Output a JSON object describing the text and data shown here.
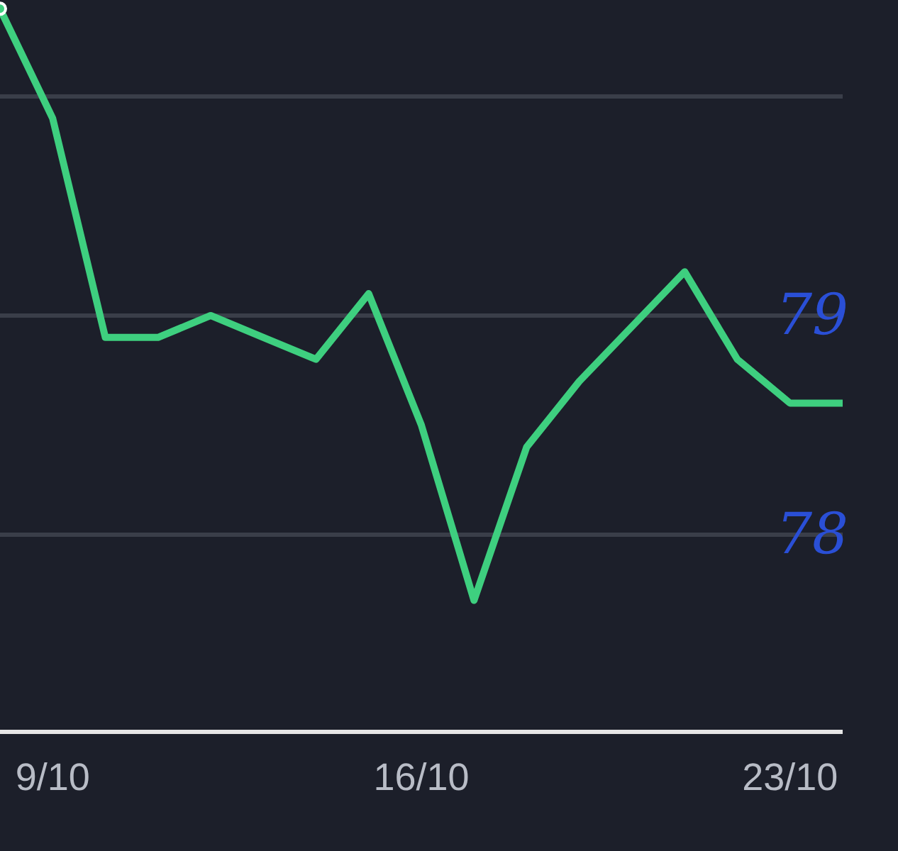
{
  "chart_data": {
    "type": "line",
    "x": [
      "--10-08",
      "--10-09",
      "--10-10",
      "--10-11",
      "--10-12",
      "--10-13",
      "--10-14",
      "--10-15",
      "--10-16",
      "--10-17",
      "--10-18",
      "--10-19",
      "--10-20",
      "--10-21",
      "--10-22",
      "--10-23",
      "--10-24"
    ],
    "series": [
      {
        "color": "#3ecf7f",
        "values": [
          80.4,
          79.9,
          78.9,
          78.9,
          79.0,
          78.9,
          78.8,
          79.1,
          78.5,
          77.7,
          78.4,
          78.7,
          78.95,
          79.2,
          78.8,
          78.6,
          78.6
        ]
      }
    ],
    "xlim": [
      "--10-08",
      "--10-24"
    ],
    "xticks": [
      {
        "value": "--10-09",
        "label": "9/10"
      },
      {
        "value": "--10-16",
        "label": "16/10"
      },
      {
        "value": "--10-23",
        "label": "23/10"
      }
    ],
    "ylim": [
      77.1,
      80.44
    ],
    "yticks": [
      {
        "value": 80,
        "label": null
      },
      79,
      78
    ],
    "grid": "y",
    "marker": "none",
    "line_style": "solid"
  }
}
